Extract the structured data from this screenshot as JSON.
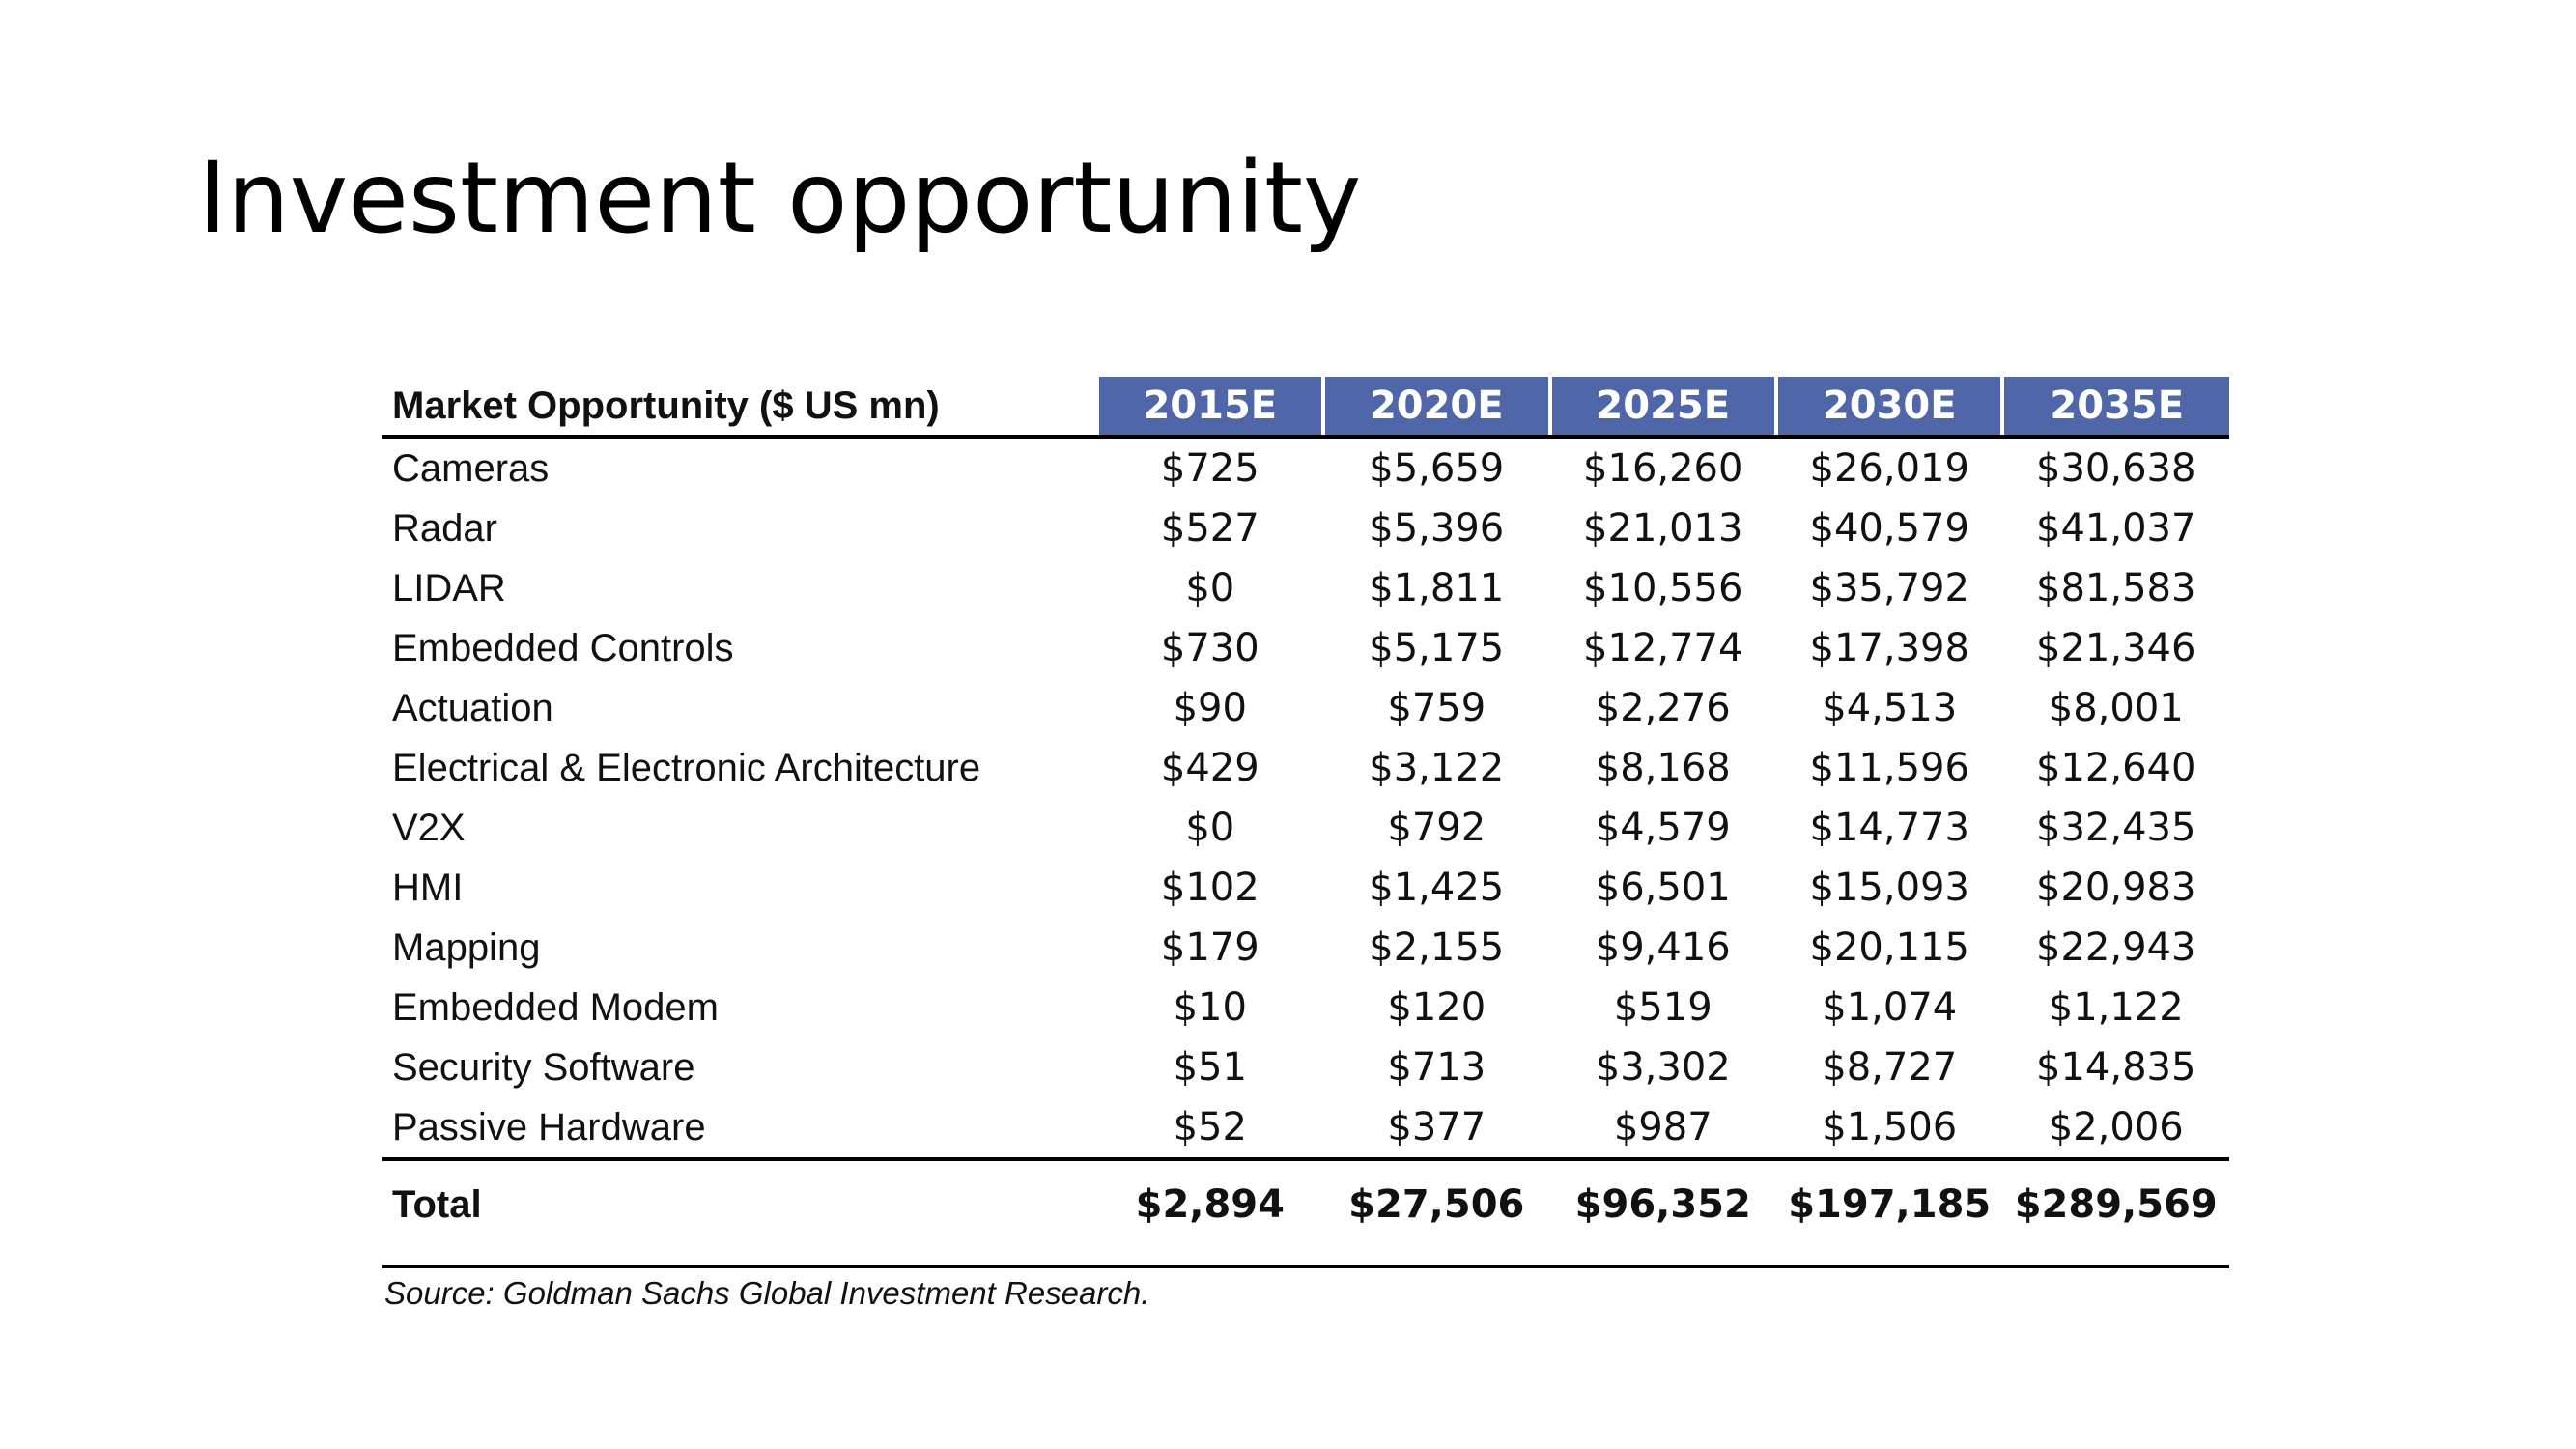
{
  "slide": {
    "title": "Investment opportunity"
  },
  "table": {
    "header_label": "Market Opportunity ($ US mn)",
    "years": [
      "2015E",
      "2020E",
      "2025E",
      "2030E",
      "2035E"
    ],
    "header_fill_color": "#4f67a8",
    "rows": [
      {
        "label": "Cameras",
        "values": [
          "$725",
          "$5,659",
          "$16,260",
          "$26,019",
          "$30,638"
        ]
      },
      {
        "label": "Radar",
        "values": [
          "$527",
          "$5,396",
          "$21,013",
          "$40,579",
          "$41,037"
        ]
      },
      {
        "label": "LIDAR",
        "values": [
          "$0",
          "$1,811",
          "$10,556",
          "$35,792",
          "$81,583"
        ]
      },
      {
        "label": "Embedded Controls",
        "values": [
          "$730",
          "$5,175",
          "$12,774",
          "$17,398",
          "$21,346"
        ]
      },
      {
        "label": "Actuation",
        "values": [
          "$90",
          "$759",
          "$2,276",
          "$4,513",
          "$8,001"
        ]
      },
      {
        "label": "Electrical & Electronic Architecture",
        "values": [
          "$429",
          "$3,122",
          "$8,168",
          "$11,596",
          "$12,640"
        ]
      },
      {
        "label": "V2X",
        "values": [
          "$0",
          "$792",
          "$4,579",
          "$14,773",
          "$32,435"
        ]
      },
      {
        "label": "HMI",
        "values": [
          "$102",
          "$1,425",
          "$6,501",
          "$15,093",
          "$20,983"
        ]
      },
      {
        "label": "Mapping",
        "values": [
          "$179",
          "$2,155",
          "$9,416",
          "$20,115",
          "$22,943"
        ]
      },
      {
        "label": "Embedded Modem",
        "values": [
          "$10",
          "$120",
          "$519",
          "$1,074",
          "$1,122"
        ]
      },
      {
        "label": "Security Software",
        "values": [
          "$51",
          "$713",
          "$3,302",
          "$8,727",
          "$14,835"
        ]
      },
      {
        "label": "Passive Hardware",
        "values": [
          "$52",
          "$377",
          "$987",
          "$1,506",
          "$2,006"
        ]
      }
    ],
    "total": {
      "label": "Total",
      "values": [
        "$2,894",
        "$27,506",
        "$96,352",
        "$197,185",
        "$289,569"
      ]
    },
    "source": "Source: Goldman Sachs Global Investment Research."
  }
}
